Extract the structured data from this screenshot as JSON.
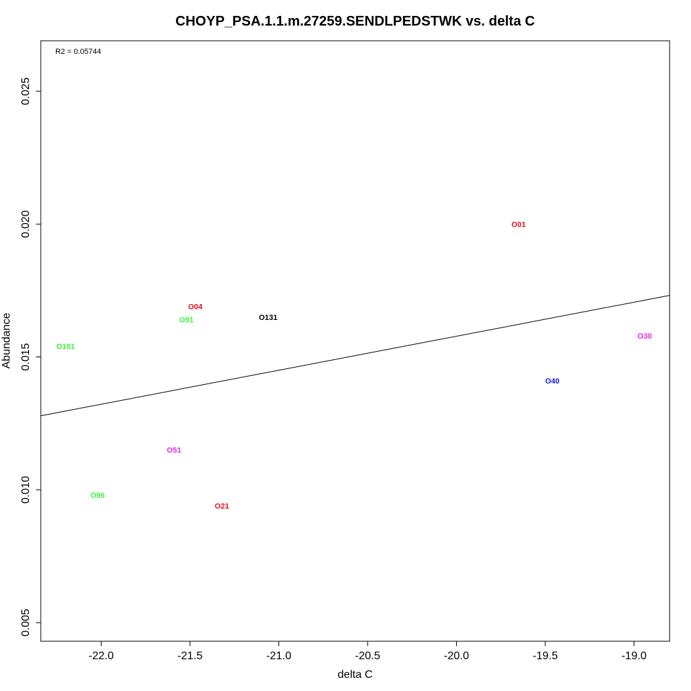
{
  "chart_data": {
    "type": "scatter",
    "title": "CHOYP_PSA.1.1.m.27259.SENDLPEDSTWK vs. delta C",
    "xlabel": "delta C",
    "ylabel": "Abundance",
    "annotation": "R2 = 0.05744",
    "xlim": [
      -22.34,
      -18.8
    ],
    "ylim": [
      0.0043,
      0.0269
    ],
    "x_ticks": [
      -22.0,
      -21.5,
      -21.0,
      -20.5,
      -20.0,
      -19.5,
      -19.0
    ],
    "x_tick_labels": [
      "-22.0",
      "-21.5",
      "-21.0",
      "-20.5",
      "-20.0",
      "-19.5",
      "-19.0"
    ],
    "y_ticks": [
      0.005,
      0.01,
      0.015,
      0.02,
      0.025
    ],
    "y_tick_labels": [
      "0.005",
      "0.010",
      "0.015",
      "0.020",
      "0.025"
    ],
    "grid": false,
    "points": [
      {
        "label": "O01",
        "x": -19.65,
        "y": 0.02,
        "color": "#e0101a"
      },
      {
        "label": "O04",
        "x": -21.47,
        "y": 0.0169,
        "color": "#e0101a"
      },
      {
        "label": "O91",
        "x": -21.52,
        "y": 0.0164,
        "color": "#3ef13b"
      },
      {
        "label": "O131",
        "x": -21.06,
        "y": 0.0165,
        "color": "#000000"
      },
      {
        "label": "O101",
        "x": -22.2,
        "y": 0.0154,
        "color": "#3ef13b"
      },
      {
        "label": "O30",
        "x": -18.94,
        "y": 0.0158,
        "color": "#e825e0"
      },
      {
        "label": "O40",
        "x": -19.46,
        "y": 0.0141,
        "color": "#0a1ee0"
      },
      {
        "label": "O51",
        "x": -21.59,
        "y": 0.0115,
        "color": "#e825e0"
      },
      {
        "label": "O96",
        "x": -22.02,
        "y": 0.0098,
        "color": "#3ef13b"
      },
      {
        "label": "O21",
        "x": -21.32,
        "y": 0.0094,
        "color": "#e0101a"
      }
    ],
    "fit_line": {
      "intercept": 0.04138,
      "slope": 0.00128,
      "color": "#000000"
    }
  }
}
